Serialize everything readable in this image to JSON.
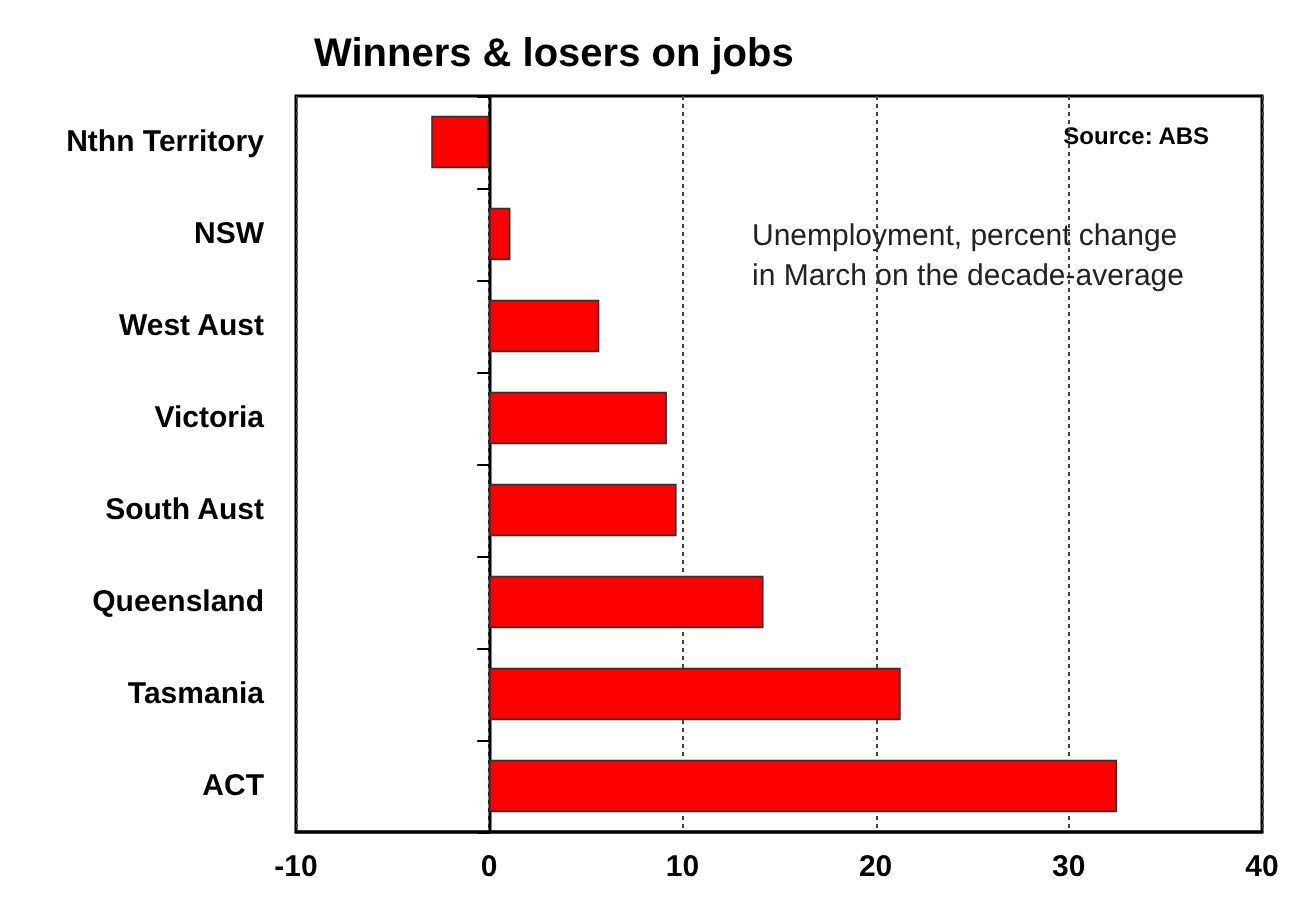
{
  "chart_data": {
    "type": "bar",
    "orientation": "horizontal",
    "title": "Winners & losers on jobs",
    "annotations": [
      "Source: ABS",
      "Unemployment, percent change\nin March on the decade-average"
    ],
    "categories": [
      "Nthn Territory",
      "NSW",
      "West Aust",
      "Victoria",
      "South Aust",
      "Queensland",
      "Tasmania",
      "ACT"
    ],
    "values": [
      -3.0,
      1.1,
      5.7,
      9.2,
      9.7,
      14.2,
      21.3,
      32.5
    ],
    "color": "#ff0000",
    "xlim": [
      -10,
      40
    ],
    "xticks": [
      -10,
      0,
      10,
      20,
      30,
      40
    ],
    "grid": "x"
  }
}
